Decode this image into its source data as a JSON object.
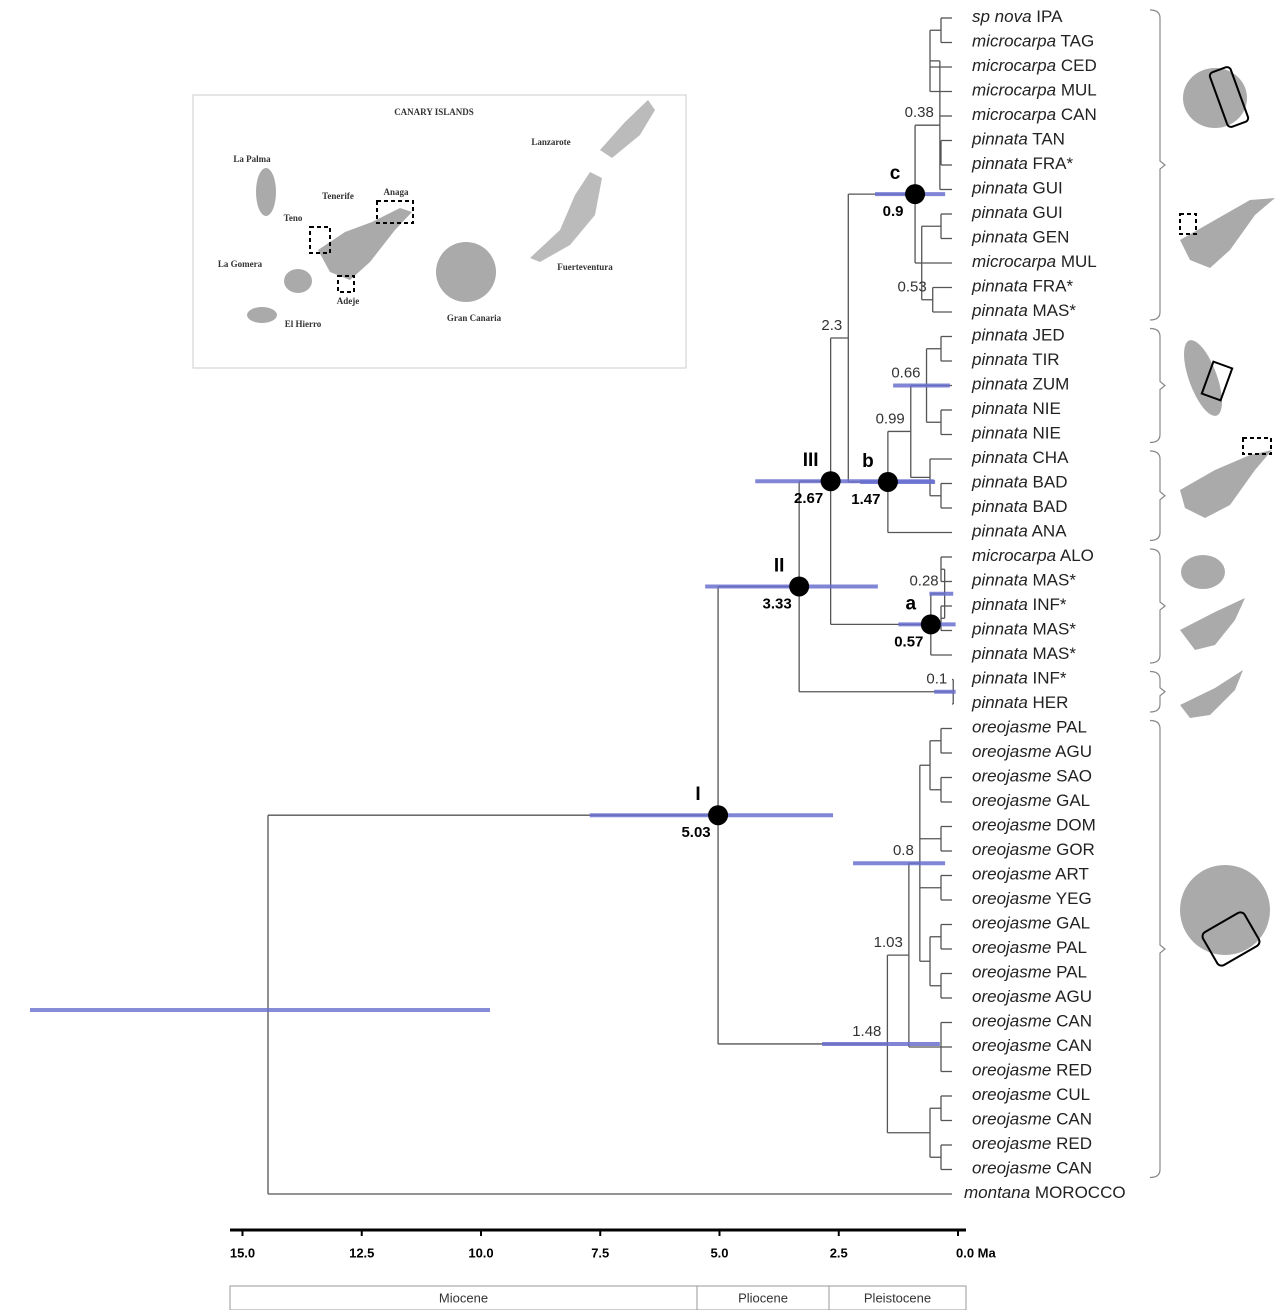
{
  "map": {
    "title": "CANARY ISLANDS",
    "labels": [
      "La Palma",
      "Tenerife",
      "Anaga",
      "Teno",
      "La Gomera",
      "Adeje",
      "El Hierro",
      "Gran Canaria",
      "Fuerteventura",
      "Lanzarote"
    ]
  },
  "tips": [
    {
      "species": "sp nova",
      "population": "IPA"
    },
    {
      "species": "microcarpa",
      "population": "TAG"
    },
    {
      "species": "microcarpa",
      "population": "CED"
    },
    {
      "species": "microcarpa",
      "population": "MUL"
    },
    {
      "species": "microcarpa",
      "population": "CAN"
    },
    {
      "species": "pinnata",
      "population": "TAN"
    },
    {
      "species": "pinnata",
      "population": "FRA*"
    },
    {
      "species": "pinnata",
      "population": "GUI"
    },
    {
      "species": "pinnata",
      "population": "GUI"
    },
    {
      "species": "pinnata",
      "population": "GEN"
    },
    {
      "species": "microcarpa",
      "population": "MUL"
    },
    {
      "species": "pinnata",
      "population": "FRA*"
    },
    {
      "species": "pinnata",
      "population": "MAS*"
    },
    {
      "species": "pinnata",
      "population": "JED"
    },
    {
      "species": "pinnata",
      "population": "TIR"
    },
    {
      "species": "pinnata",
      "population": "ZUM"
    },
    {
      "species": "pinnata",
      "population": "NIE"
    },
    {
      "species": "pinnata",
      "population": "NIE"
    },
    {
      "species": "pinnata",
      "population": "CHA"
    },
    {
      "species": "pinnata",
      "population": "BAD"
    },
    {
      "species": "pinnata",
      "population": "BAD"
    },
    {
      "species": "pinnata",
      "population": "ANA"
    },
    {
      "species": "microcarpa",
      "population": "ALO"
    },
    {
      "species": "pinnata",
      "population": "MAS*"
    },
    {
      "species": "pinnata",
      "population": "INF*"
    },
    {
      "species": "pinnata",
      "population": "MAS*"
    },
    {
      "species": "pinnata",
      "population": "MAS*"
    },
    {
      "species": "pinnata",
      "population": "INF*"
    },
    {
      "species": "pinnata",
      "population": "HER"
    },
    {
      "species": "oreojasme",
      "population": "PAL"
    },
    {
      "species": "oreojasme",
      "population": "AGU"
    },
    {
      "species": "oreojasme",
      "population": "SAO"
    },
    {
      "species": "oreojasme",
      "population": "GAL"
    },
    {
      "species": "oreojasme",
      "population": "DOM"
    },
    {
      "species": "oreojasme",
      "population": "GOR"
    },
    {
      "species": "oreojasme",
      "population": "ART"
    },
    {
      "species": "oreojasme",
      "population": "YEG"
    },
    {
      "species": "oreojasme",
      "population": "GAL"
    },
    {
      "species": "oreojasme",
      "population": "PAL"
    },
    {
      "species": "oreojasme",
      "population": "PAL"
    },
    {
      "species": "oreojasme",
      "population": "AGU"
    },
    {
      "species": "oreojasme",
      "population": "CAN"
    },
    {
      "species": "oreojasme",
      "population": "CAN"
    },
    {
      "species": "oreojasme",
      "population": "RED"
    },
    {
      "species": "oreojasme",
      "population": "CUL"
    },
    {
      "species": "oreojasme",
      "population": "CAN"
    },
    {
      "species": "oreojasme",
      "population": "RED"
    },
    {
      "species": "oreojasme",
      "population": "CAN"
    },
    {
      "species": "montana",
      "population": "MOROCCO"
    }
  ],
  "nodes": [
    {
      "clade": "I",
      "age": 5.03,
      "hpd": [
        7.72,
        2.62
      ]
    },
    {
      "clade": "II",
      "age": 3.33,
      "hpd": [
        5.3,
        1.68
      ]
    },
    {
      "clade": "III",
      "age": 2.67,
      "hpd": [
        4.25,
        0.5
      ]
    },
    {
      "clade": "a",
      "age": 0.57,
      "hpd": [
        1.25,
        0.05
      ]
    },
    {
      "clade": "b",
      "age": 1.47,
      "hpd": [
        2.05,
        0.48
      ]
    },
    {
      "clade": "c",
      "age": 0.9,
      "hpd": [
        1.74,
        0.27
      ]
    },
    {
      "age": 2.3
    },
    {
      "age": 0.38
    },
    {
      "age": 0.53
    },
    {
      "age": 0.66,
      "hpd": [
        1.36,
        0.17
      ]
    },
    {
      "age": 0.99
    },
    {
      "age": 0.28,
      "hpd": [
        0.6,
        0.1
      ]
    },
    {
      "age": 0.1,
      "hpd": [
        0.5,
        0.05
      ]
    },
    {
      "age": 0.8,
      "hpd": [
        2.2,
        0.27
      ]
    },
    {
      "age": 1.03
    },
    {
      "age": 1.48,
      "hpd": [
        2.85,
        0.38
      ]
    }
  ],
  "axis": {
    "ticks": [
      {
        "value": 15,
        "label": "15.0"
      },
      {
        "value": 12.5,
        "label": "12.5"
      },
      {
        "value": 10,
        "label": "10.0"
      },
      {
        "value": 7.5,
        "label": "7.5"
      },
      {
        "value": 5,
        "label": "5.0"
      },
      {
        "value": 2.5,
        "label": "2.5"
      },
      {
        "value": 0,
        "label": "0.0 Ma"
      }
    ]
  },
  "epochs": [
    "Miocene",
    "Pliocene",
    "Pleistocene"
  ]
}
